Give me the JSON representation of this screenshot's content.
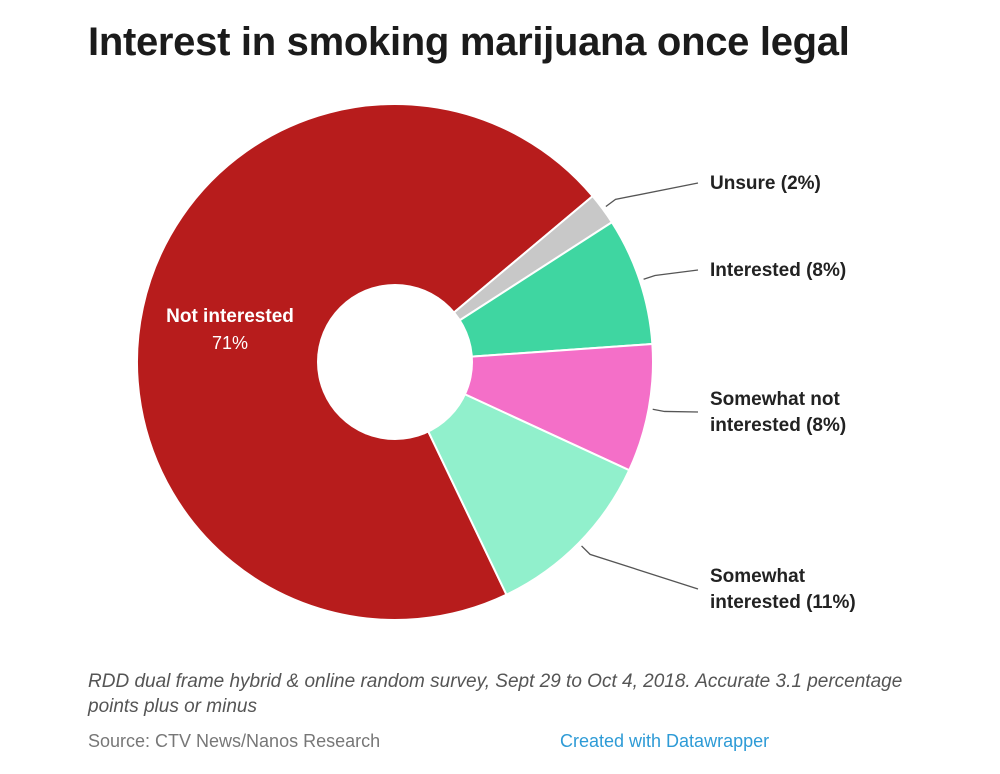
{
  "chart_data": {
    "type": "pie",
    "title": "Interest in smoking marijuana once legal",
    "slices": [
      {
        "label": "Not interested",
        "value": 71,
        "display": "71%",
        "color": "#b71c1c"
      },
      {
        "label": "Unsure",
        "value": 2,
        "display": "(2%)",
        "color": "#c8c8c8"
      },
      {
        "label": "Interested",
        "value": 8,
        "display": "(8%)",
        "color": "#3fd6a1"
      },
      {
        "label": "Somewhat not interested",
        "value": 8,
        "display": "(8%)",
        "color": "#f46fc8"
      },
      {
        "label": "Somewhat interested",
        "value": 11,
        "display": "(11%)",
        "color": "#91f0cc"
      }
    ],
    "outside_labels": [
      {
        "lines": [
          "Unsure (2%)"
        ]
      },
      {
        "lines": [
          "Interested (8%)"
        ]
      },
      {
        "lines": [
          "Somewhat not",
          "interested (8%)"
        ]
      },
      {
        "lines": [
          "Somewhat",
          "interested (11%)"
        ]
      }
    ],
    "inside_label": {
      "name": "Not interested",
      "value": "71%"
    },
    "notes": "RDD dual frame hybrid & online random survey, Sept 29 to Oct 4, 2018. Accurate 3.1 percentage points plus or minus",
    "source": "Source: CTV News/Nanos Research",
    "credit": "Created with Datawrapper"
  }
}
